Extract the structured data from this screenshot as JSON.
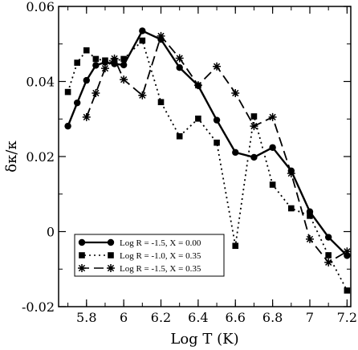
{
  "chart_data": {
    "type": "line",
    "xlabel": "Log T (K)",
    "ylabel": "δκ/κ",
    "xlim": [
      5.65,
      7.22
    ],
    "ylim": [
      -0.02,
      0.06
    ],
    "x_ticks": [
      5.8,
      6.0,
      6.2,
      6.4,
      6.6,
      6.8,
      7.0,
      7.2
    ],
    "x_tick_labels": [
      "5.8",
      "6",
      "6.2",
      "6.4",
      "6.6",
      "6.8",
      "7",
      "7.2"
    ],
    "y_ticks": [
      -0.02,
      0.0,
      0.02,
      0.04,
      0.06
    ],
    "y_tick_labels": [
      "-0.02",
      "0",
      "0.02",
      "0.04",
      "0.06"
    ],
    "legend_position": "bottom-left",
    "series": [
      {
        "name": "Log R = -1.5, X = 0.00",
        "style": "solid",
        "marker": "circle",
        "x": [
          5.7,
          5.75,
          5.8,
          5.85,
          5.9,
          5.95,
          6.0,
          6.1,
          6.2,
          6.3,
          6.4,
          6.5,
          6.6,
          6.7,
          6.8,
          6.9,
          7.0,
          7.1,
          7.2
        ],
        "y": [
          0.0281,
          0.0343,
          0.0403,
          0.0443,
          0.0451,
          0.0447,
          0.0444,
          0.0535,
          0.0512,
          0.0437,
          0.0389,
          0.0297,
          0.0211,
          0.0198,
          0.0224,
          0.0162,
          0.0053,
          -0.0015,
          -0.0064
        ]
      },
      {
        "name": "Log R = -1.0, X = 0.35",
        "style": "dotted",
        "marker": "square",
        "x": [
          5.7,
          5.75,
          5.8,
          5.85,
          5.9,
          5.95,
          6.0,
          6.1,
          6.2,
          6.3,
          6.4,
          6.5,
          6.6,
          6.7,
          6.8,
          6.9,
          7.0,
          7.1,
          7.2
        ],
        "y": [
          0.0372,
          0.045,
          0.0483,
          0.046,
          0.0456,
          0.0455,
          0.046,
          0.0509,
          0.0345,
          0.0254,
          0.0301,
          0.0237,
          -0.0038,
          0.0307,
          0.0125,
          0.0062,
          0.0042,
          -0.0063,
          -0.0157
        ]
      },
      {
        "name": "Log R = -1.5, X = 0.35",
        "style": "dashed",
        "marker": "star",
        "x": [
          5.8,
          5.85,
          5.9,
          5.95,
          6.0,
          6.1,
          6.2,
          6.3,
          6.4,
          6.5,
          6.6,
          6.7,
          6.8,
          6.9,
          7.0,
          7.1,
          7.2
        ],
        "y": [
          0.0305,
          0.0369,
          0.0435,
          0.0461,
          0.0405,
          0.0363,
          0.0521,
          0.0462,
          0.039,
          0.044,
          0.0369,
          0.0281,
          0.0305,
          0.0155,
          -0.002,
          -0.0082,
          -0.0053
        ]
      }
    ]
  }
}
